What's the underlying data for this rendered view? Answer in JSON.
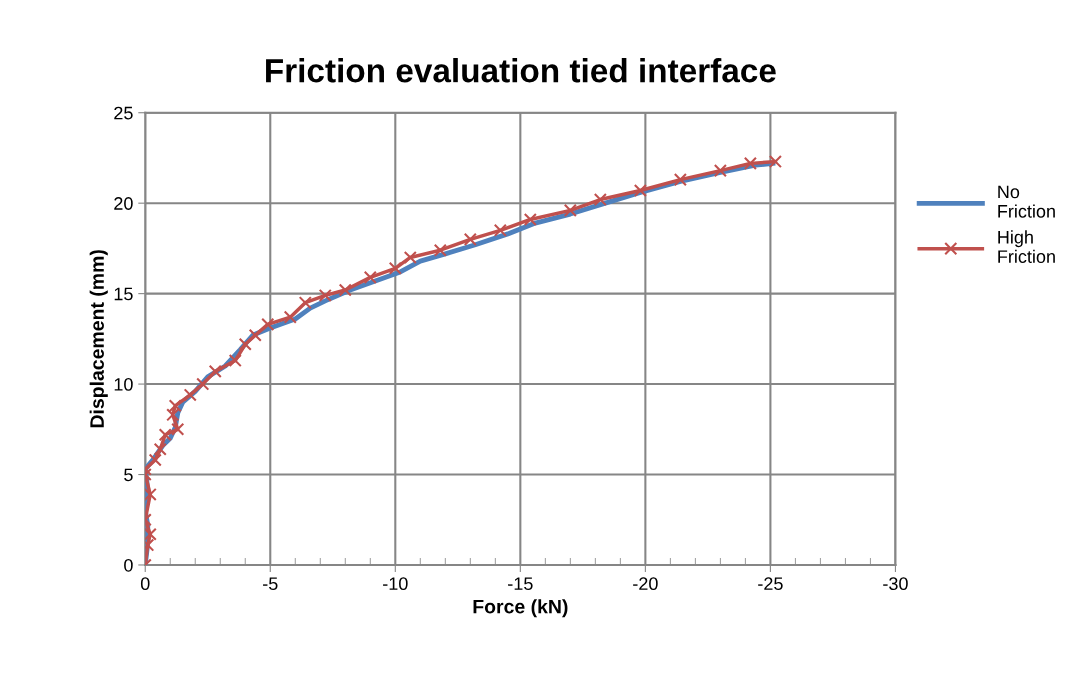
{
  "chart_data": {
    "type": "line",
    "title": "Friction evaluation tied interface",
    "xlabel": "Force (kN)",
    "ylabel": "Displacement (mm)",
    "xlim": [
      0,
      -30
    ],
    "xticks": [
      0,
      -5,
      -10,
      -15,
      -20,
      -25,
      -30
    ],
    "ylim": [
      0,
      25
    ],
    "yticks": [
      0,
      5,
      10,
      15,
      20,
      25
    ],
    "grid": true,
    "legend": "right",
    "series": [
      {
        "name": "No Friction",
        "color": "#4f81bd",
        "marker": "none",
        "x": [
          0,
          -0.1,
          -0.1,
          0,
          -0.1,
          0,
          -0.3,
          -0.7,
          -1.0,
          -1.2,
          -1.3,
          -1.5,
          -2.0,
          -2.5,
          -3.2,
          -3.8,
          -4.3,
          -5.0,
          -6.0,
          -6.6,
          -7.2,
          -8.2,
          -9.2,
          -10.2,
          -11,
          -12,
          -13.2,
          -14.5,
          -15.6,
          -17,
          -18.4,
          -19.8,
          -21.4,
          -23,
          -24.4,
          -25.1
        ],
        "values": [
          0,
          1.2,
          2.2,
          3,
          4.2,
          5.3,
          5.8,
          6.6,
          7.0,
          7.6,
          8.4,
          9.0,
          9.6,
          10.4,
          11.0,
          11.9,
          12.7,
          13.1,
          13.6,
          14.2,
          14.6,
          15.2,
          15.7,
          16.2,
          16.8,
          17.2,
          17.7,
          18.3,
          18.9,
          19.4,
          20.0,
          20.6,
          21.2,
          21.7,
          22.1,
          22.2
        ]
      },
      {
        "name": "High Friction",
        "color": "#c0504d",
        "marker": "cross",
        "x": [
          0,
          -0.1,
          -0.2,
          0,
          -0.2,
          0,
          0,
          -0.4,
          -0.6,
          -0.8,
          -1.3,
          -1.1,
          -1.2,
          -1.8,
          -2.3,
          -2.8,
          -3.6,
          -4.0,
          -4.4,
          -4.9,
          -5.8,
          -6.4,
          -7.2,
          -8,
          -9,
          -10,
          -10.6,
          -11.8,
          -13,
          -14.2,
          -15.4,
          -17,
          -18.2,
          -19.8,
          -21.4,
          -23,
          -24.2,
          -25.2
        ],
        "values": [
          0,
          1.1,
          1.7,
          2.5,
          3.9,
          5.0,
          5.3,
          5.8,
          6.4,
          7.2,
          7.5,
          8.3,
          8.8,
          9.4,
          10.0,
          10.7,
          11.3,
          12.2,
          12.7,
          13.3,
          13.7,
          14.5,
          14.9,
          15.2,
          15.9,
          16.4,
          17.0,
          17.4,
          18.0,
          18.5,
          19.1,
          19.6,
          20.2,
          20.7,
          21.3,
          21.8,
          22.2,
          22.3
        ]
      }
    ]
  }
}
